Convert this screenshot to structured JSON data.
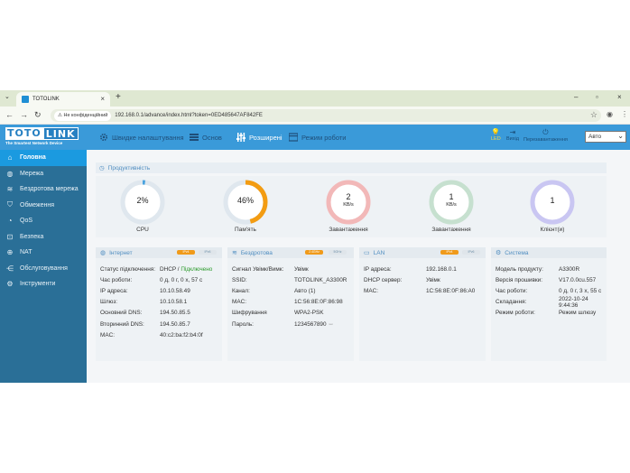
{
  "browser": {
    "tab_title": "TOTOLINK",
    "new_tab": "+",
    "url_security": "Не конфіденційний",
    "url": "192.168.0.1/advance/index.html?token=0ED485647AF842FE"
  },
  "header": {
    "logo_left": "TOTO",
    "logo_right": "LINK",
    "logo_tagline": "The Smartest Network Device",
    "nav": [
      {
        "label": "Швидке налаштування"
      },
      {
        "label": "Основ"
      },
      {
        "label": "Розширені"
      },
      {
        "label": "Режим роботи"
      }
    ],
    "right": [
      {
        "label": "LED"
      },
      {
        "label": "Вихід"
      },
      {
        "label": "Перезавантаження"
      }
    ],
    "language": "Авто"
  },
  "sidebar": {
    "items": [
      {
        "label": "Головна"
      },
      {
        "label": "Мережа"
      },
      {
        "label": "Бездротова мережа"
      },
      {
        "label": "Обмеження"
      },
      {
        "label": "QoS"
      },
      {
        "label": "Безпека"
      },
      {
        "label": "NAT"
      },
      {
        "label": "Обслуговування"
      },
      {
        "label": "Інструменти"
      }
    ]
  },
  "performance": {
    "title": "Продуктивність",
    "gauges": [
      {
        "value": "2%",
        "unit": "",
        "label": "CPU",
        "percent": 2,
        "color": "#4aa3df"
      },
      {
        "value": "46%",
        "unit": "",
        "label": "Пам'ять",
        "percent": 46,
        "color": "#f39c12"
      },
      {
        "value": "2",
        "unit": "KB/s",
        "label": "Завантаження",
        "percent": 0,
        "color": "#f2b8b8"
      },
      {
        "value": "1",
        "unit": "KB/s",
        "label": "Завантаження",
        "percent": 0,
        "color": "#c6e0cf"
      },
      {
        "value": "1",
        "unit": "",
        "label": "Клієнт(и)",
        "percent": 100,
        "color": "#c9c6f2"
      }
    ]
  },
  "cards": {
    "internet": {
      "title": "Інтернет",
      "chip1": "IPv4",
      "chip2": "IPv6",
      "rows": [
        {
          "k": "Статус підключення:",
          "v": "DHCP / ",
          "v2": "Підключено"
        },
        {
          "k": "Час роботи:",
          "v": "0 д, 0 г, 0 х, 57 с"
        },
        {
          "k": "IP адреса:",
          "v": "10.10.58.49"
        },
        {
          "k": "Шлюз:",
          "v": "10.10.58.1"
        },
        {
          "k": "Основний DNS:",
          "v": "194.50.85.5"
        },
        {
          "k": "Вторинний DNS:",
          "v": "194.50.85.7"
        },
        {
          "k": "MAC:",
          "v": "40:c2:ba:f2:b4:0f"
        }
      ]
    },
    "wireless": {
      "title": "Бездротова",
      "chip1": "2.4GHz",
      "chip2": "5GHz",
      "rows": [
        {
          "k": "Сигнал Увімк/Вимк:",
          "v": "Увімк"
        },
        {
          "k": "SSID:",
          "v": "TOTOLINK_A3300R"
        },
        {
          "k": "Канал:",
          "v": "Авто (1)"
        },
        {
          "k": "MAC:",
          "v": "1C:56:8E:0F:86:98"
        },
        {
          "k": "Шифрування",
          "v": "WPA2-PSK"
        },
        {
          "k": "Пароль:",
          "v": "1234567890",
          "eye": "ꟷ"
        }
      ]
    },
    "lan": {
      "title": "LAN",
      "chip1": "IPv4",
      "chip2": "IPv6",
      "rows": [
        {
          "k": "IP адреса:",
          "v": "192.168.0.1"
        },
        {
          "k": "DHCP сервер:",
          "v": "Увімк"
        },
        {
          "k": "MAC:",
          "v": "1C:56:8E:0F:86:A0"
        }
      ]
    },
    "system": {
      "title": "Система",
      "rows": [
        {
          "k": "Модель продукту:",
          "v": "A3300R"
        },
        {
          "k": "Версія прошивки:",
          "v": "V17.0.0cu.557"
        },
        {
          "k": "Час роботи:",
          "v": "0 д, 0 г, 3 х, 55 с"
        },
        {
          "k": "Складання:",
          "v": "2022-10-24 9:44:36"
        },
        {
          "k": "Режим роботи:",
          "v": "Режим шлюзу"
        }
      ]
    }
  }
}
